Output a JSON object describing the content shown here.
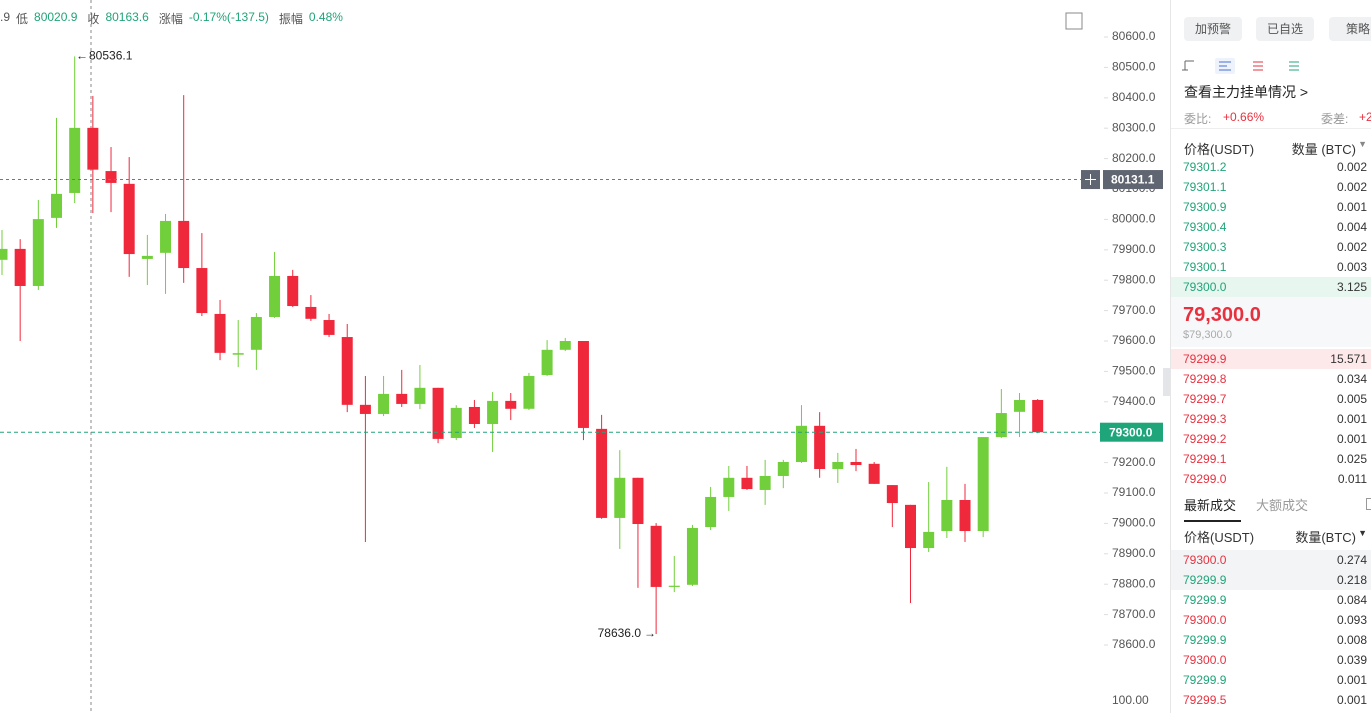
{
  "header": {
    "items": [
      {
        "label": ".9"
      },
      {
        "label": "低",
        "value": "80020.9"
      },
      {
        "label": "收",
        "value": "80163.6"
      },
      {
        "label": "涨幅",
        "value": "-0.17%(-137.5)"
      },
      {
        "label": "振幅",
        "value": "0.48%"
      }
    ]
  },
  "chart_data": {
    "type": "candlestick",
    "open": [
      79867,
      79903,
      79781,
      80005,
      80087,
      80301.1,
      80159,
      80117,
      79870,
      79890,
      79995,
      79840,
      79689,
      79555,
      79571,
      79679,
      79814,
      79712,
      79669,
      79613,
      79390,
      79360,
      79426,
      79393,
      79446,
      79281,
      79383,
      79327,
      79403,
      79377,
      79488,
      79571,
      79600,
      79311,
      79018,
      79150,
      78992,
      78791,
      78798,
      78988,
      79087,
      79150,
      79110,
      79156,
      79202,
      79321,
      79179,
      79202,
      79196,
      79126,
      79061,
      78919,
      78975,
      79077,
      78975,
      79284,
      79367,
      79406
    ],
    "high": [
      79965,
      79935,
      80064,
      80334,
      80536.1,
      80406,
      80238,
      80205,
      79949,
      80018,
      80409,
      79955,
      79735,
      79669,
      79692,
      79893,
      79834,
      79751,
      79689,
      79656,
      79485,
      79485,
      79505,
      79521,
      79446,
      79389,
      79406,
      79432,
      79429,
      79495,
      79603,
      79610,
      79600,
      79357,
      79241,
      79150,
      79001,
      78893,
      78995,
      79120,
      79189,
      79189,
      79209,
      79209,
      79389,
      79366,
      79232,
      79245,
      79202,
      79126,
      79061,
      79136,
      79186,
      79130,
      79284,
      79442,
      79429,
      79409
    ],
    "low": [
      79817,
      79600,
      79768,
      79972,
      80054,
      80020.9,
      80024,
      79811,
      79784,
      79755,
      79791,
      79682,
      79537,
      79514,
      79505,
      79676,
      79712,
      79666,
      79613,
      79366,
      78939,
      79353,
      79383,
      79376,
      79264,
      79274,
      79314,
      79235,
      79340,
      79373,
      79485,
      79567,
      79274,
      79015,
      78916,
      78788,
      78636.0,
      78774,
      78794,
      78978,
      79041,
      79110,
      79061,
      79116,
      79199,
      79150,
      79133,
      79172,
      79130,
      78988,
      78738,
      78906,
      78952,
      78939,
      78955,
      79281,
      79284,
      79297
    ],
    "close": [
      79903,
      79781,
      80001,
      80084,
      80301.1,
      80163.6,
      80120,
      79886,
      79880,
      79995,
      79840,
      79692,
      79561,
      79560,
      79679,
      79814,
      79715,
      79673,
      79620,
      79390,
      79360,
      79426,
      79393,
      79446,
      79278,
      79380,
      79327,
      79403,
      79377,
      79485,
      79571,
      79600,
      79314,
      79018,
      79150,
      78998,
      78791,
      78795,
      78985,
      79087,
      79150,
      79113,
      79156,
      79202,
      79321,
      79179,
      79202,
      79192,
      79130,
      79067,
      78919,
      78972,
      79077,
      78975,
      79284,
      79363,
      79406,
      79300.0
    ],
    "up_color": "#72cf3c",
    "down_color": "#f0283c",
    "ylim": [
      78450,
      80700
    ],
    "yticks": [
      {
        "value": 80600,
        "label": "80600.0"
      },
      {
        "value": 80500,
        "label": "80500.0"
      },
      {
        "value": 80400,
        "label": "80400.0"
      },
      {
        "value": 80300,
        "label": "80300.0"
      },
      {
        "value": 80200,
        "label": "80200.0"
      },
      {
        "value": 80100,
        "label": "80100.0"
      },
      {
        "value": 80000,
        "label": "80000.0"
      },
      {
        "value": 79900,
        "label": "79900.0"
      },
      {
        "value": 79800,
        "label": "79800.0"
      },
      {
        "value": 79700,
        "label": "79700.0"
      },
      {
        "value": 79600,
        "label": "79600.0"
      },
      {
        "value": 79500,
        "label": "79500.0"
      },
      {
        "value": 79400,
        "label": "79400.0"
      },
      {
        "value": 79300,
        "label": "79300.0"
      },
      {
        "value": 79200,
        "label": "79200.0"
      },
      {
        "value": 79100,
        "label": "79100.0"
      },
      {
        "value": 79000,
        "label": "79000.0"
      },
      {
        "value": 78900,
        "label": "78900.0"
      },
      {
        "value": 78800,
        "label": "78800.0"
      },
      {
        "value": 78700,
        "label": "78700.0"
      },
      {
        "value": 78600,
        "label": "78600.0"
      }
    ],
    "high_marker": {
      "value": 80536.1,
      "label": "80536.1"
    },
    "low_marker": {
      "value": 78636.0,
      "label": "78636.0"
    },
    "crosshair": {
      "value": 80131.1,
      "label": "80131.1"
    },
    "last_price": {
      "value": 79300.0,
      "label": "79300.0"
    },
    "indicator_label": "100.00"
  },
  "sidebar": {
    "buttons": [
      "加预警",
      "已自选",
      "策略"
    ],
    "link": "查看主力挂单情况 >",
    "ratio_label": "委比:",
    "ratio_value": "+0.66%",
    "diff_label": "委差:",
    "diff_value": "+2",
    "book_header": {
      "price": "价格(USDT)",
      "amount": "数量 (BTC)"
    },
    "asks": [
      [
        "79301.2",
        "0.002"
      ],
      [
        "79301.1",
        "0.002"
      ],
      [
        "79300.9",
        "0.001"
      ],
      [
        "79300.4",
        "0.004"
      ],
      [
        "79300.3",
        "0.002"
      ],
      [
        "79300.1",
        "0.003"
      ],
      [
        "79300.0",
        "3.125"
      ]
    ],
    "mid_price": "79,300.0",
    "mid_usd": "$79,300.0",
    "bids": [
      [
        "79299.9",
        "15.571"
      ],
      [
        "79299.8",
        "0.034"
      ],
      [
        "79299.7",
        "0.005"
      ],
      [
        "79299.3",
        "0.001"
      ],
      [
        "79299.2",
        "0.001"
      ],
      [
        "79299.1",
        "0.025"
      ],
      [
        "79299.0",
        "0.011"
      ]
    ],
    "tabs": [
      "最新成交",
      "大额成交"
    ],
    "trades_header": {
      "price": "价格(USDT)",
      "amount": "数量(BTC)"
    },
    "trades": [
      {
        "price": "79300.0",
        "amount": "0.274",
        "color": "#e8313f"
      },
      {
        "price": "79299.9",
        "amount": "0.218",
        "color": "#20a479"
      },
      {
        "price": "79299.9",
        "amount": "0.084",
        "color": "#20a479"
      },
      {
        "price": "79300.0",
        "amount": "0.093",
        "color": "#e8313f"
      },
      {
        "price": "79299.9",
        "amount": "0.008",
        "color": "#20a479"
      },
      {
        "price": "79300.0",
        "amount": "0.039",
        "color": "#e8313f"
      },
      {
        "price": "79299.9",
        "amount": "0.001",
        "color": "#20a479"
      },
      {
        "price": "79299.5",
        "amount": "0.001",
        "color": "#e8313f"
      }
    ]
  }
}
